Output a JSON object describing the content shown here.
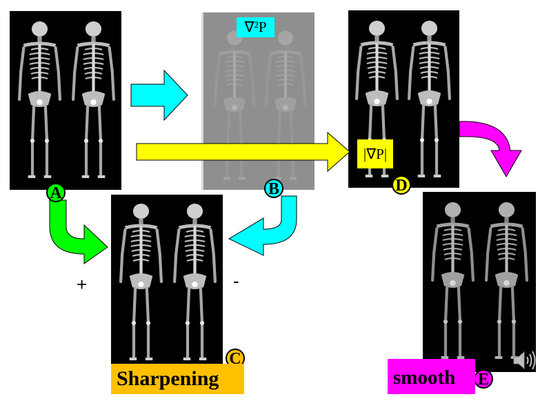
{
  "labels": {
    "A": "A",
    "B": "B",
    "C": "C",
    "D": "D",
    "E": "E",
    "laplacian": "∇²P",
    "gradient": "|∇P|",
    "sharpening": "Sharpening",
    "smooth": "smooth",
    "plus": "+",
    "minus": "-"
  },
  "colors": {
    "cyan": "#00ffff",
    "yellow": "#ffff00",
    "green": "#00ff00",
    "magenta": "#ff00ff",
    "orange": "#ffc000"
  },
  "icons": {
    "speaker": "speaker-icon"
  }
}
